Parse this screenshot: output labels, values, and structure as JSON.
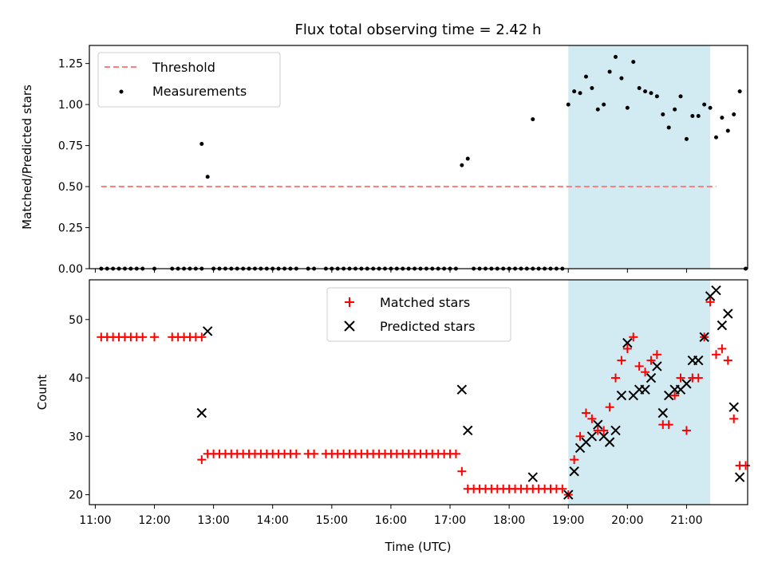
{
  "title": "Flux total observing time = 2.42 h",
  "colors": {
    "threshold": "#ff7f7f",
    "measurement": "#000000",
    "matched": "#ff0000",
    "predicted": "#000000",
    "shade": "#add8e6"
  },
  "chart_data": [
    {
      "type": "scatter",
      "xlabel": "",
      "ylabel": "Matched/Predicted stars",
      "xlim": [
        "10:54",
        "22:02"
      ],
      "ylim": [
        0,
        1.36
      ],
      "yticks": [
        "0.00",
        "0.25",
        "0.50",
        "0.75",
        "1.00",
        "1.25"
      ],
      "grid": false,
      "legend": {
        "position": "upper-left",
        "entries": [
          "Threshold",
          "Measurements"
        ]
      },
      "shaded_span": [
        "19:00",
        "21:24"
      ],
      "threshold": {
        "name": "Threshold",
        "x": [
          "11:06",
          "21:30"
        ],
        "y": 0.5
      },
      "series": [
        {
          "name": "Measurements",
          "points": [
            [
              "11:06",
              0
            ],
            [
              "11:12",
              0
            ],
            [
              "11:18",
              0
            ],
            [
              "11:24",
              0
            ],
            [
              "11:30",
              0
            ],
            [
              "11:36",
              0
            ],
            [
              "11:42",
              0
            ],
            [
              "11:48",
              0
            ],
            [
              "12:00",
              0
            ],
            [
              "12:18",
              0
            ],
            [
              "12:24",
              0
            ],
            [
              "12:30",
              0
            ],
            [
              "12:36",
              0
            ],
            [
              "12:42",
              0
            ],
            [
              "12:48",
              0
            ],
            [
              "12:48",
              0.76
            ],
            [
              "12:54",
              0.56
            ],
            [
              "13:00",
              0
            ],
            [
              "13:06",
              0
            ],
            [
              "13:12",
              0
            ],
            [
              "13:18",
              0
            ],
            [
              "13:24",
              0
            ],
            [
              "13:30",
              0
            ],
            [
              "13:36",
              0
            ],
            [
              "13:42",
              0
            ],
            [
              "13:48",
              0
            ],
            [
              "13:54",
              0
            ],
            [
              "14:00",
              0
            ],
            [
              "14:06",
              0
            ],
            [
              "14:12",
              0
            ],
            [
              "14:18",
              0
            ],
            [
              "14:24",
              0
            ],
            [
              "14:36",
              0
            ],
            [
              "14:42",
              0
            ],
            [
              "14:54",
              0
            ],
            [
              "15:00",
              0
            ],
            [
              "15:06",
              0
            ],
            [
              "15:12",
              0
            ],
            [
              "15:18",
              0
            ],
            [
              "15:24",
              0
            ],
            [
              "15:30",
              0
            ],
            [
              "15:36",
              0
            ],
            [
              "15:42",
              0
            ],
            [
              "15:48",
              0
            ],
            [
              "15:54",
              0
            ],
            [
              "16:00",
              0
            ],
            [
              "16:06",
              0
            ],
            [
              "16:12",
              0
            ],
            [
              "16:18",
              0
            ],
            [
              "16:24",
              0
            ],
            [
              "16:30",
              0
            ],
            [
              "16:36",
              0
            ],
            [
              "16:42",
              0
            ],
            [
              "16:48",
              0
            ],
            [
              "16:54",
              0
            ],
            [
              "17:00",
              0
            ],
            [
              "17:06",
              0
            ],
            [
              "17:12",
              0.63
            ],
            [
              "17:18",
              0.67
            ],
            [
              "17:24",
              0
            ],
            [
              "17:30",
              0
            ],
            [
              "17:36",
              0
            ],
            [
              "17:42",
              0
            ],
            [
              "17:48",
              0
            ],
            [
              "17:54",
              0
            ],
            [
              "18:00",
              0
            ],
            [
              "18:06",
              0
            ],
            [
              "18:12",
              0
            ],
            [
              "18:18",
              0
            ],
            [
              "18:24",
              0
            ],
            [
              "18:30",
              0
            ],
            [
              "18:36",
              0
            ],
            [
              "18:42",
              0
            ],
            [
              "18:48",
              0
            ],
            [
              "18:54",
              0
            ],
            [
              "18:24",
              0.91
            ],
            [
              "19:00",
              1.0
            ],
            [
              "19:06",
              1.08
            ],
            [
              "19:12",
              1.07
            ],
            [
              "19:18",
              1.17
            ],
            [
              "19:24",
              1.1
            ],
            [
              "19:30",
              0.97
            ],
            [
              "19:36",
              1.0
            ],
            [
              "19:42",
              1.2
            ],
            [
              "19:48",
              1.29
            ],
            [
              "19:54",
              1.16
            ],
            [
              "20:00",
              0.98
            ],
            [
              "20:06",
              1.26
            ],
            [
              "20:12",
              1.1
            ],
            [
              "20:18",
              1.08
            ],
            [
              "20:24",
              1.07
            ],
            [
              "20:30",
              1.05
            ],
            [
              "20:36",
              0.94
            ],
            [
              "20:42",
              0.86
            ],
            [
              "20:48",
              0.97
            ],
            [
              "20:54",
              1.05
            ],
            [
              "21:00",
              0.79
            ],
            [
              "21:06",
              0.93
            ],
            [
              "21:12",
              0.93
            ],
            [
              "21:18",
              1.0
            ],
            [
              "21:24",
              0.98
            ],
            [
              "21:30",
              0.8
            ],
            [
              "21:36",
              0.92
            ],
            [
              "21:42",
              0.84
            ],
            [
              "21:48",
              0.94
            ],
            [
              "21:54",
              1.08
            ],
            [
              "22:00",
              0
            ]
          ]
        }
      ]
    },
    {
      "type": "scatter",
      "xlabel": "Time (UTC)",
      "ylabel": "Count",
      "xlim": [
        "10:54",
        "22:02"
      ],
      "ylim": [
        18.3,
        56.8
      ],
      "xticks": [
        "11:00",
        "12:00",
        "13:00",
        "14:00",
        "15:00",
        "16:00",
        "17:00",
        "18:00",
        "19:00",
        "20:00",
        "21:00"
      ],
      "yticks": [
        "20",
        "30",
        "40",
        "50"
      ],
      "grid": false,
      "legend": {
        "position": "upper-center",
        "entries": [
          "Matched stars",
          "Predicted stars"
        ]
      },
      "shaded_span": [
        "19:00",
        "21:24"
      ],
      "series": [
        {
          "name": "Matched stars",
          "marker": "plus",
          "points": [
            [
              "11:06",
              47
            ],
            [
              "11:12",
              47
            ],
            [
              "11:18",
              47
            ],
            [
              "11:24",
              47
            ],
            [
              "11:30",
              47
            ],
            [
              "11:36",
              47
            ],
            [
              "11:42",
              47
            ],
            [
              "11:48",
              47
            ],
            [
              "12:00",
              47
            ],
            [
              "12:18",
              47
            ],
            [
              "12:24",
              47
            ],
            [
              "12:30",
              47
            ],
            [
              "12:36",
              47
            ],
            [
              "12:42",
              47
            ],
            [
              "12:48",
              47
            ],
            [
              "12:48",
              26
            ],
            [
              "12:54",
              27
            ],
            [
              "13:00",
              27
            ],
            [
              "13:06",
              27
            ],
            [
              "13:12",
              27
            ],
            [
              "13:18",
              27
            ],
            [
              "13:24",
              27
            ],
            [
              "13:30",
              27
            ],
            [
              "13:36",
              27
            ],
            [
              "13:42",
              27
            ],
            [
              "13:48",
              27
            ],
            [
              "13:54",
              27
            ],
            [
              "14:00",
              27
            ],
            [
              "14:06",
              27
            ],
            [
              "14:12",
              27
            ],
            [
              "14:18",
              27
            ],
            [
              "14:24",
              27
            ],
            [
              "14:36",
              27
            ],
            [
              "14:42",
              27
            ],
            [
              "14:54",
              27
            ],
            [
              "15:00",
              27
            ],
            [
              "15:06",
              27
            ],
            [
              "15:12",
              27
            ],
            [
              "15:18",
              27
            ],
            [
              "15:24",
              27
            ],
            [
              "15:30",
              27
            ],
            [
              "15:36",
              27
            ],
            [
              "15:42",
              27
            ],
            [
              "15:48",
              27
            ],
            [
              "15:54",
              27
            ],
            [
              "16:00",
              27
            ],
            [
              "16:06",
              27
            ],
            [
              "16:12",
              27
            ],
            [
              "16:18",
              27
            ],
            [
              "16:24",
              27
            ],
            [
              "16:30",
              27
            ],
            [
              "16:36",
              27
            ],
            [
              "16:42",
              27
            ],
            [
              "16:48",
              27
            ],
            [
              "16:54",
              27
            ],
            [
              "17:00",
              27
            ],
            [
              "17:06",
              27
            ],
            [
              "17:12",
              24
            ],
            [
              "17:18",
              21
            ],
            [
              "17:24",
              21
            ],
            [
              "17:30",
              21
            ],
            [
              "17:36",
              21
            ],
            [
              "17:42",
              21
            ],
            [
              "17:48",
              21
            ],
            [
              "17:54",
              21
            ],
            [
              "18:00",
              21
            ],
            [
              "18:06",
              21
            ],
            [
              "18:12",
              21
            ],
            [
              "18:18",
              21
            ],
            [
              "18:24",
              21
            ],
            [
              "18:30",
              21
            ],
            [
              "18:36",
              21
            ],
            [
              "18:42",
              21
            ],
            [
              "18:48",
              21
            ],
            [
              "18:54",
              21
            ],
            [
              "19:00",
              20
            ],
            [
              "19:06",
              26
            ],
            [
              "19:12",
              30
            ],
            [
              "19:18",
              34
            ],
            [
              "19:24",
              33
            ],
            [
              "19:30",
              31
            ],
            [
              "19:36",
              31
            ],
            [
              "19:42",
              35
            ],
            [
              "19:48",
              40
            ],
            [
              "19:54",
              43
            ],
            [
              "20:00",
              45
            ],
            [
              "20:06",
              47
            ],
            [
              "20:12",
              42
            ],
            [
              "20:18",
              41
            ],
            [
              "20:24",
              43
            ],
            [
              "20:30",
              44
            ],
            [
              "20:36",
              32
            ],
            [
              "20:42",
              32
            ],
            [
              "20:48",
              37
            ],
            [
              "20:54",
              40
            ],
            [
              "21:00",
              31
            ],
            [
              "21:06",
              40
            ],
            [
              "21:12",
              40
            ],
            [
              "21:18",
              47
            ],
            [
              "21:24",
              53
            ],
            [
              "21:30",
              44
            ],
            [
              "21:36",
              45
            ],
            [
              "21:42",
              43
            ],
            [
              "21:48",
              33
            ],
            [
              "21:54",
              25
            ],
            [
              "22:00",
              25
            ]
          ]
        },
        {
          "name": "Predicted stars",
          "marker": "x",
          "points": [
            [
              "12:48",
              34
            ],
            [
              "12:54",
              48
            ],
            [
              "17:12",
              38
            ],
            [
              "17:18",
              31
            ],
            [
              "18:24",
              23
            ],
            [
              "19:00",
              20
            ],
            [
              "19:06",
              24
            ],
            [
              "19:12",
              28
            ],
            [
              "19:18",
              29
            ],
            [
              "19:24",
              30
            ],
            [
              "19:30",
              32
            ],
            [
              "19:36",
              30
            ],
            [
              "19:42",
              29
            ],
            [
              "19:48",
              31
            ],
            [
              "19:54",
              37
            ],
            [
              "20:00",
              46
            ],
            [
              "20:06",
              37
            ],
            [
              "20:12",
              38
            ],
            [
              "20:18",
              38
            ],
            [
              "20:24",
              40
            ],
            [
              "20:30",
              42
            ],
            [
              "20:36",
              34
            ],
            [
              "20:42",
              37
            ],
            [
              "20:48",
              38
            ],
            [
              "20:54",
              38
            ],
            [
              "21:00",
              39
            ],
            [
              "21:06",
              43
            ],
            [
              "21:12",
              43
            ],
            [
              "21:18",
              47
            ],
            [
              "21:24",
              54
            ],
            [
              "21:30",
              55
            ],
            [
              "21:36",
              49
            ],
            [
              "21:42",
              51
            ],
            [
              "21:48",
              35
            ],
            [
              "21:54",
              23
            ]
          ]
        }
      ]
    }
  ]
}
